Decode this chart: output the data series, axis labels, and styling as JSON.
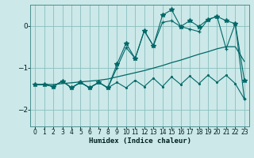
{
  "xlabel": "Humidex (Indice chaleur)",
  "bg_color": "#cce8e8",
  "grid_color": "#8abfbf",
  "line_color": "#006868",
  "xlim": [
    -0.5,
    23.5
  ],
  "ylim": [
    -2.4,
    0.5
  ],
  "yticks": [
    0,
    -1,
    -2
  ],
  "xticks": [
    0,
    1,
    2,
    3,
    4,
    5,
    6,
    7,
    8,
    9,
    10,
    11,
    12,
    13,
    14,
    15,
    16,
    17,
    18,
    19,
    20,
    21,
    22,
    23
  ],
  "line_smooth_x": [
    0,
    1,
    2,
    3,
    4,
    5,
    6,
    7,
    8,
    9,
    10,
    11,
    12,
    13,
    14,
    15,
    16,
    17,
    18,
    19,
    20,
    21,
    22,
    23
  ],
  "line_smooth_y": [
    -1.4,
    -1.4,
    -1.4,
    -1.38,
    -1.36,
    -1.34,
    -1.32,
    -1.3,
    -1.27,
    -1.22,
    -1.17,
    -1.12,
    -1.07,
    -1.01,
    -0.95,
    -0.88,
    -0.82,
    -0.75,
    -0.68,
    -0.62,
    -0.55,
    -0.5,
    -0.5,
    -0.85
  ],
  "line_lower_x": [
    0,
    1,
    2,
    3,
    4,
    5,
    6,
    7,
    8,
    9,
    10,
    11,
    12,
    13,
    14,
    15,
    16,
    17,
    18,
    19,
    20,
    21,
    22,
    23
  ],
  "line_lower_y": [
    -1.4,
    -1.4,
    -1.45,
    -1.32,
    -1.48,
    -1.35,
    -1.48,
    -1.35,
    -1.48,
    -1.35,
    -1.48,
    -1.3,
    -1.45,
    -1.25,
    -1.45,
    -1.22,
    -1.4,
    -1.2,
    -1.38,
    -1.18,
    -1.35,
    -1.18,
    -1.38,
    -1.75
  ],
  "line_mid_x": [
    0,
    1,
    2,
    3,
    4,
    5,
    6,
    7,
    8,
    9,
    10,
    11,
    12,
    13,
    14,
    15,
    16,
    17,
    18,
    19,
    20,
    21,
    22,
    23
  ],
  "line_mid_y": [
    -1.4,
    -1.4,
    -1.45,
    -1.32,
    -1.48,
    -1.35,
    -1.48,
    -1.35,
    -1.48,
    -1.0,
    -0.52,
    -0.78,
    -0.12,
    -0.48,
    0.08,
    0.12,
    -0.02,
    -0.08,
    -0.14,
    0.15,
    0.22,
    -0.55,
    0.05,
    -1.75
  ],
  "line_upper_x": [
    0,
    1,
    2,
    3,
    4,
    5,
    6,
    7,
    8,
    9,
    10,
    11,
    12,
    13,
    14,
    15,
    16,
    17,
    18,
    19,
    20,
    21,
    22,
    23
  ],
  "line_upper_y": [
    -1.4,
    -1.4,
    -1.45,
    -1.32,
    -1.48,
    -1.35,
    -1.48,
    -1.35,
    -1.48,
    -0.92,
    -0.42,
    -0.78,
    -0.12,
    -0.48,
    0.25,
    0.38,
    -0.02,
    0.12,
    -0.02,
    0.15,
    0.22,
    0.12,
    0.05,
    -1.3
  ]
}
